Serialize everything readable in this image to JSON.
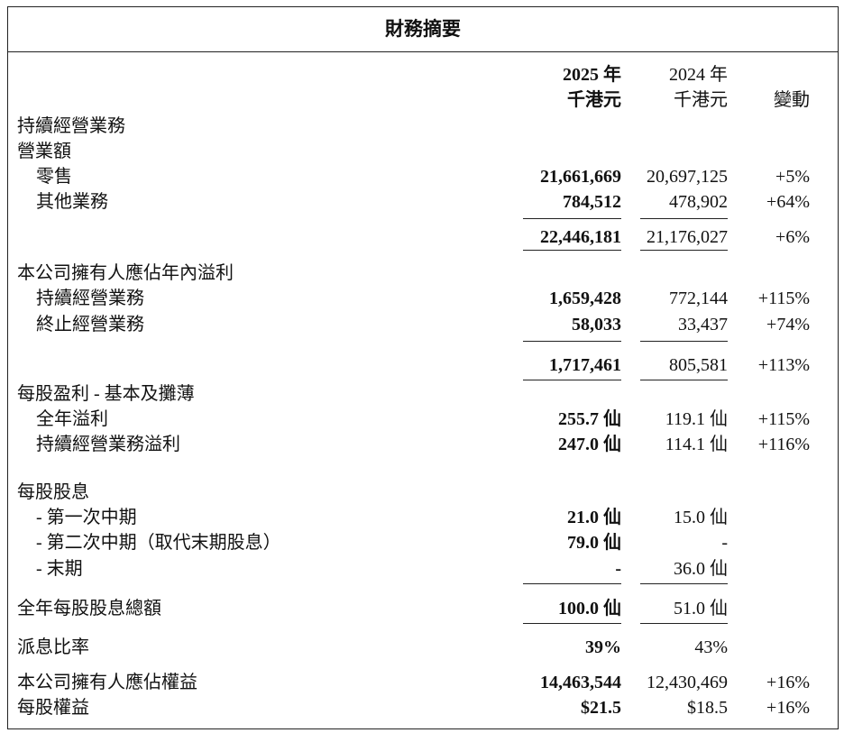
{
  "title": "財務摘要",
  "header": {
    "y2025": "2025 年",
    "y2024": "2024 年",
    "unit2025": "千港元",
    "unit2024": "千港元",
    "change": "變動"
  },
  "sections": {
    "continuing": "持續經營業務",
    "revenue": "營業額",
    "retail": {
      "label": "零售",
      "v2025": "21,661,669",
      "v2024": "20,697,125",
      "chg": "+5%"
    },
    "other": {
      "label": "其他業務",
      "v2025": "784,512",
      "v2024": "478,902",
      "chg": "+64%"
    },
    "revenue_total": {
      "v2025": "22,446,181",
      "v2024": "21,176,027",
      "chg": "+6%"
    },
    "profit": "本公司擁有人應佔年內溢利",
    "profit_cont": {
      "label": "持續經營業務",
      "v2025": "1,659,428",
      "v2024": "772,144",
      "chg": "+115%"
    },
    "profit_disc": {
      "label": "終止經營業務",
      "v2025": "58,033",
      "v2024": "33,437",
      "chg": "+74%"
    },
    "profit_total": {
      "v2025": "1,717,461",
      "v2024": "805,581",
      "chg": "+113%"
    },
    "eps": "每股盈利 - 基本及攤薄",
    "eps_full": {
      "label": "全年溢利",
      "v2025": "255.7 仙",
      "v2024": "119.1 仙",
      "chg": "+115%"
    },
    "eps_cont": {
      "label": "持續經營業務溢利",
      "v2025": "247.0 仙",
      "v2024": "114.1 仙",
      "chg": "+116%"
    },
    "dps": "每股股息",
    "dps_first": {
      "label": "- 第一次中期",
      "v2025": "21.0 仙",
      "v2024": "15.0 仙"
    },
    "dps_second": {
      "label": "- 第二次中期（取代末期股息）",
      "v2025": "79.0 仙",
      "v2024": "-"
    },
    "dps_final": {
      "label": "- 末期",
      "v2025": "-",
      "v2024": "36.0 仙"
    },
    "dps_total": {
      "label": "全年每股股息總額",
      "v2025": "100.0 仙",
      "v2024": "51.0 仙"
    },
    "payout": {
      "label": "派息比率",
      "v2025": "39%",
      "v2024": "43%"
    },
    "equity": {
      "label": "本公司擁有人應佔權益",
      "v2025": "14,463,544",
      "v2024": "12,430,469",
      "chg": "+16%"
    },
    "eqps": {
      "label": "每股權益",
      "v2025": "$21.5",
      "v2024": "$18.5",
      "chg": "+16%"
    }
  }
}
